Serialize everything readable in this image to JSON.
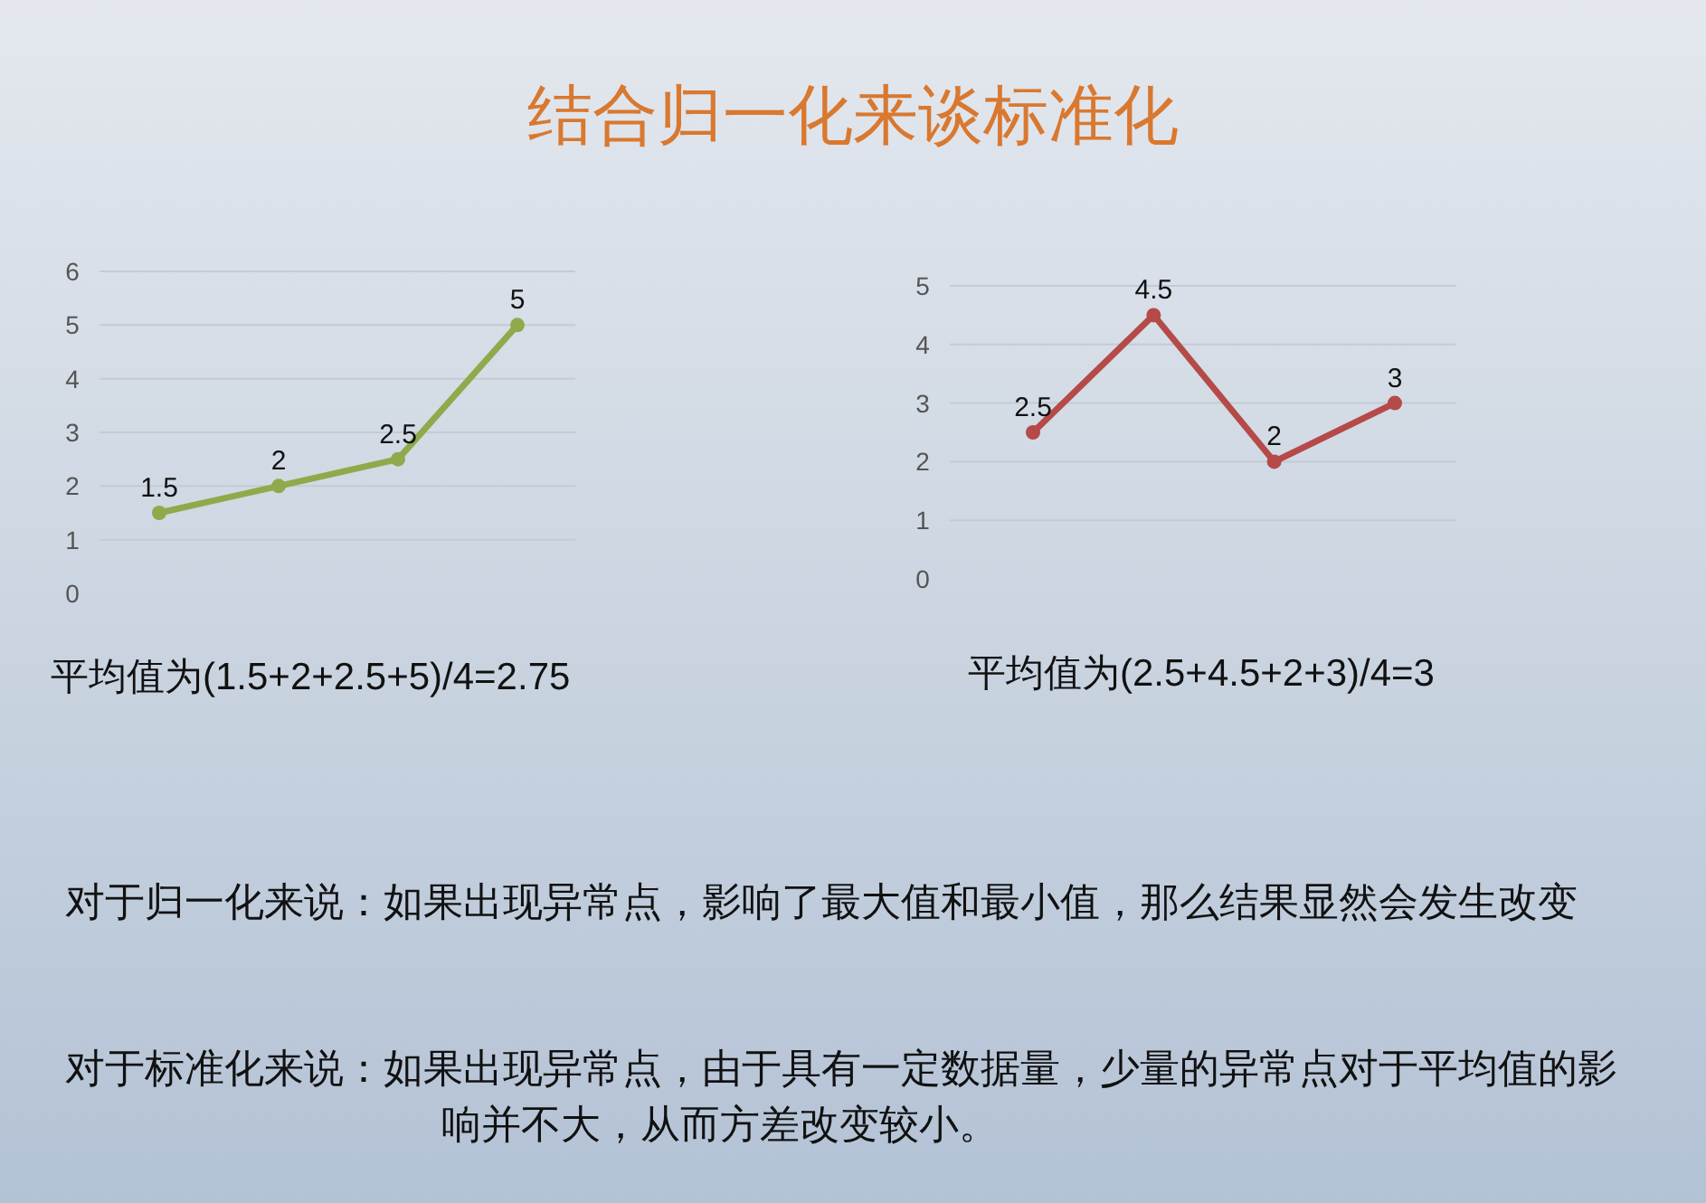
{
  "chart_data": [
    {
      "type": "line",
      "title": "结合归一化来谈标准化",
      "categories": [
        null,
        null,
        null,
        null
      ],
      "series": [
        {
          "color": "#8faa4a",
          "values": [
            1.5,
            2,
            2.5,
            5
          ]
        }
      ],
      "ylim": [
        0,
        6
      ],
      "yticks": [
        0,
        1,
        2,
        3,
        4,
        5,
        6
      ],
      "grid": "y",
      "marker": "circle",
      "data_labels": true,
      "annotations": [
        "平均值为(1.5+2+2.5+5)/4=2.75"
      ]
    },
    {
      "type": "line",
      "categories": [
        null,
        null,
        null,
        null
      ],
      "series": [
        {
          "color": "#b54a48",
          "values": [
            2.5,
            4.5,
            2,
            3
          ]
        }
      ],
      "ylim": [
        0,
        5
      ],
      "yticks": [
        0,
        1,
        2,
        3,
        4,
        5
      ],
      "grid": "y",
      "marker": "circle",
      "data_labels": true,
      "annotations": [
        "平均值为(2.5+4.5+2+3)/4=3"
      ]
    },
    {
      "type": "other",
      "annotations": [
        "对于归一化来说：如果出现异常点，影响了最大值和最小值，那么结果显然会发生改变",
        "对于标准化来说：如果出现异常点，由于具有一定数据量，少量的异常点对于平均值的影响并不大，从而方差改变较小。"
      ]
    }
  ]
}
